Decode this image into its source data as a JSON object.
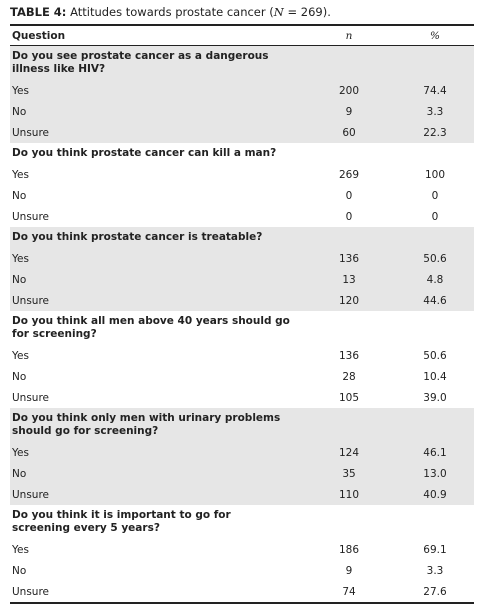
{
  "title": {
    "label": "TABLE 4:",
    "text_before": "Attitudes towards prostate cancer (",
    "variable": "N",
    "text_after": " = 269)."
  },
  "table": {
    "header": [
      "Question",
      "n",
      "%"
    ],
    "groups": [
      {
        "question": "Do you see prostate cancer as a dangerous illness like HIV?",
        "rows": [
          {
            "answer": "Yes",
            "n": "200",
            "percent": "74.4"
          },
          {
            "answer": "No",
            "n": "9",
            "percent": "3.3"
          },
          {
            "answer": "Unsure",
            "n": "60",
            "percent": "22.3"
          }
        ]
      },
      {
        "question": "Do you think prostate cancer can kill a man?",
        "rows": [
          {
            "answer": "Yes",
            "n": "269",
            "percent": "100"
          },
          {
            "answer": "No",
            "n": "0",
            "percent": "0"
          },
          {
            "answer": "Unsure",
            "n": "0",
            "percent": "0"
          }
        ]
      },
      {
        "question": "Do you think prostate cancer is treatable?",
        "rows": [
          {
            "answer": "Yes",
            "n": "136",
            "percent": "50.6"
          },
          {
            "answer": "No",
            "n": "13",
            "percent": "4.8"
          },
          {
            "answer": "Unsure",
            "n": "120",
            "percent": "44.6"
          }
        ]
      },
      {
        "question": "Do you think all men above 40 years should go for screening?",
        "rows": [
          {
            "answer": "Yes",
            "n": "136",
            "percent": "50.6"
          },
          {
            "answer": "No",
            "n": "28",
            "percent": "10.4"
          },
          {
            "answer": "Unsure",
            "n": "105",
            "percent": "39.0"
          }
        ]
      },
      {
        "question": "Do you think only men with urinary problems should go for screening?",
        "rows": [
          {
            "answer": "Yes",
            "n": "124",
            "percent": "46.1"
          },
          {
            "answer": "No",
            "n": "35",
            "percent": "13.0"
          },
          {
            "answer": "Unsure",
            "n": "110",
            "percent": "40.9"
          }
        ]
      },
      {
        "question": "Do you think it is important to go for screening every 5 years?",
        "rows": [
          {
            "answer": "Yes",
            "n": "186",
            "percent": "69.1"
          },
          {
            "answer": "No",
            "n": "9",
            "percent": "3.3"
          },
          {
            "answer": "Unsure",
            "n": "74",
            "percent": "27.6"
          }
        ]
      }
    ]
  }
}
